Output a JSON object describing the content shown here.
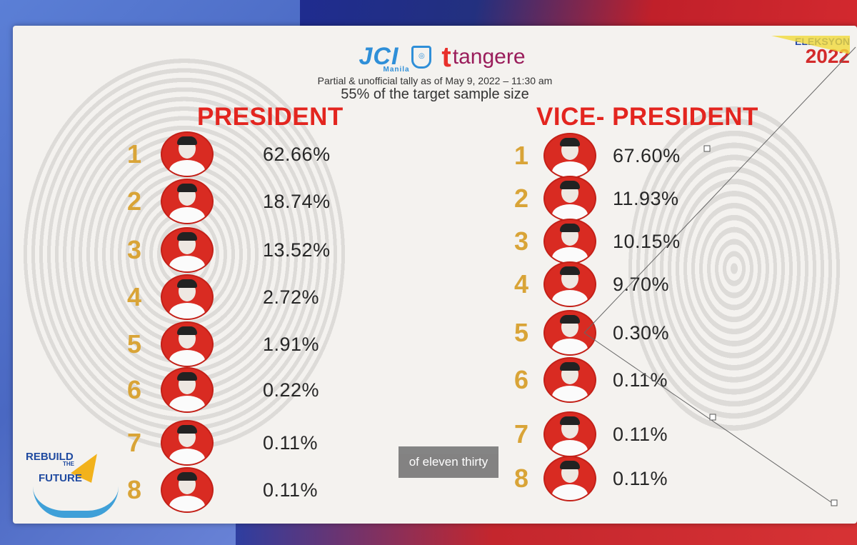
{
  "header": {
    "jci_logo": "JCI",
    "jci_sub": "Manila",
    "tangere_mark": "t",
    "tangere_logo": "tangere",
    "tally_text": "Partial & unofficial tally as of May 9, 2022 – 11:30 am",
    "sample_text": "55% of the target sample size"
  },
  "eleksyon": {
    "word": "ELEKSYON",
    "year": "2022"
  },
  "president": {
    "title": "PRESIDENT",
    "rows": [
      {
        "rank": "1",
        "pct": "62.66%"
      },
      {
        "rank": "2",
        "pct": "18.74%"
      },
      {
        "rank": "3",
        "pct": "13.52%"
      },
      {
        "rank": "4",
        "pct": "2.72%"
      },
      {
        "rank": "5",
        "pct": "1.91%"
      },
      {
        "rank": "6",
        "pct": "0.22%"
      },
      {
        "rank": "7",
        "pct": "0.11%"
      },
      {
        "rank": "8",
        "pct": "0.11%"
      }
    ]
  },
  "vice_president": {
    "title": "VICE- PRESIDENT",
    "rows": [
      {
        "rank": "1",
        "pct": "67.60%"
      },
      {
        "rank": "2",
        "pct": "11.93%"
      },
      {
        "rank": "3",
        "pct": "10.15%"
      },
      {
        "rank": "4",
        "pct": "9.70%"
      },
      {
        "rank": "5",
        "pct": "0.30%"
      },
      {
        "rank": "6",
        "pct": "0.11%"
      },
      {
        "rank": "7",
        "pct": "0.11%"
      },
      {
        "rank": "8",
        "pct": "0.11%"
      }
    ]
  },
  "rebuild": {
    "line1": "REBUILD",
    "line2": "THE",
    "line3": "FUTURE"
  },
  "caption": "of eleven thirty",
  "colors": {
    "accent_red": "#e3251f",
    "rank_gold": "#d9a437",
    "jci_blue": "#2f8fd8"
  }
}
